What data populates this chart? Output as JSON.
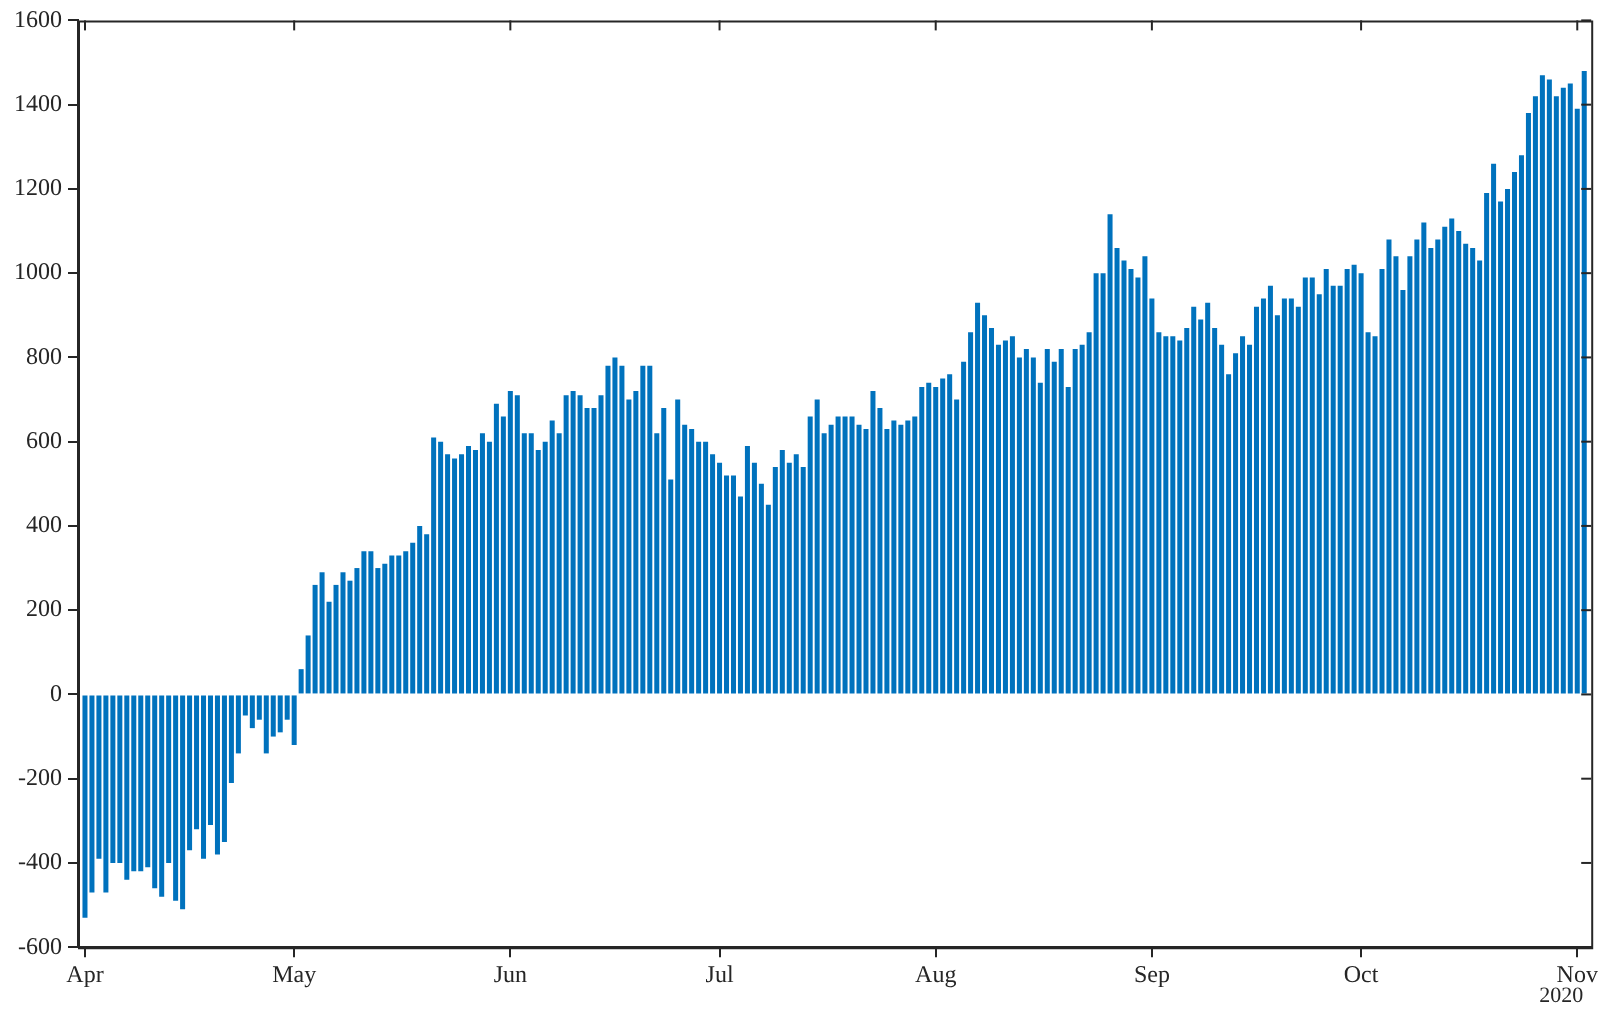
{
  "chart_data": {
    "type": "bar",
    "color": "#0072bd",
    "grid": false,
    "legend": false,
    "x": [
      "2020-04-01",
      "2020-04-02",
      "2020-04-03",
      "2020-04-04",
      "2020-04-05",
      "2020-04-06",
      "2020-04-07",
      "2020-04-08",
      "2020-04-09",
      "2020-04-10",
      "2020-04-11",
      "2020-04-12",
      "2020-04-13",
      "2020-04-14",
      "2020-04-15",
      "2020-04-16",
      "2020-04-17",
      "2020-04-18",
      "2020-04-19",
      "2020-04-20",
      "2020-04-21",
      "2020-04-22",
      "2020-04-23",
      "2020-04-24",
      "2020-04-25",
      "2020-04-26",
      "2020-04-27",
      "2020-04-28",
      "2020-04-29",
      "2020-04-30",
      "2020-05-01",
      "2020-05-02",
      "2020-05-03",
      "2020-05-04",
      "2020-05-05",
      "2020-05-06",
      "2020-05-07",
      "2020-05-08",
      "2020-05-09",
      "2020-05-10",
      "2020-05-11",
      "2020-05-12",
      "2020-05-13",
      "2020-05-14",
      "2020-05-15",
      "2020-05-16",
      "2020-05-17",
      "2020-05-18",
      "2020-05-19",
      "2020-05-20",
      "2020-05-21",
      "2020-05-22",
      "2020-05-23",
      "2020-05-24",
      "2020-05-25",
      "2020-05-26",
      "2020-05-27",
      "2020-05-28",
      "2020-05-29",
      "2020-05-30",
      "2020-05-31",
      "2020-06-01",
      "2020-06-02",
      "2020-06-03",
      "2020-06-04",
      "2020-06-05",
      "2020-06-06",
      "2020-06-07",
      "2020-06-08",
      "2020-06-09",
      "2020-06-10",
      "2020-06-11",
      "2020-06-12",
      "2020-06-13",
      "2020-06-14",
      "2020-06-15",
      "2020-06-16",
      "2020-06-17",
      "2020-06-18",
      "2020-06-19",
      "2020-06-20",
      "2020-06-21",
      "2020-06-22",
      "2020-06-23",
      "2020-06-24",
      "2020-06-25",
      "2020-06-26",
      "2020-06-27",
      "2020-06-28",
      "2020-06-29",
      "2020-06-30",
      "2020-07-01",
      "2020-07-02",
      "2020-07-03",
      "2020-07-04",
      "2020-07-05",
      "2020-07-06",
      "2020-07-07",
      "2020-07-08",
      "2020-07-09",
      "2020-07-10",
      "2020-07-11",
      "2020-07-12",
      "2020-07-13",
      "2020-07-14",
      "2020-07-15",
      "2020-07-16",
      "2020-07-17",
      "2020-07-18",
      "2020-07-19",
      "2020-07-20",
      "2020-07-21",
      "2020-07-22",
      "2020-07-23",
      "2020-07-24",
      "2020-07-25",
      "2020-07-26",
      "2020-07-27",
      "2020-07-28",
      "2020-07-29",
      "2020-07-30",
      "2020-07-31",
      "2020-08-01",
      "2020-08-02",
      "2020-08-03",
      "2020-08-04",
      "2020-08-05",
      "2020-08-06",
      "2020-08-07",
      "2020-08-08",
      "2020-08-09",
      "2020-08-10",
      "2020-08-11",
      "2020-08-12",
      "2020-08-13",
      "2020-08-14",
      "2020-08-15",
      "2020-08-16",
      "2020-08-17",
      "2020-08-18",
      "2020-08-19",
      "2020-08-20",
      "2020-08-21",
      "2020-08-22",
      "2020-08-23",
      "2020-08-24",
      "2020-08-25",
      "2020-08-26",
      "2020-08-27",
      "2020-08-28",
      "2020-08-29",
      "2020-08-30",
      "2020-08-31",
      "2020-09-01",
      "2020-09-02",
      "2020-09-03",
      "2020-09-04",
      "2020-09-05",
      "2020-09-06",
      "2020-09-07",
      "2020-09-08",
      "2020-09-09",
      "2020-09-10",
      "2020-09-11",
      "2020-09-12",
      "2020-09-13",
      "2020-09-14",
      "2020-09-15",
      "2020-09-16",
      "2020-09-17",
      "2020-09-18",
      "2020-09-19",
      "2020-09-20",
      "2020-09-21",
      "2020-09-22",
      "2020-09-23",
      "2020-09-24",
      "2020-09-25",
      "2020-09-26",
      "2020-09-27",
      "2020-09-28",
      "2020-09-29",
      "2020-09-30",
      "2020-10-01",
      "2020-10-02",
      "2020-10-03",
      "2020-10-04",
      "2020-10-05",
      "2020-10-06",
      "2020-10-07",
      "2020-10-08",
      "2020-10-09",
      "2020-10-10",
      "2020-10-11",
      "2020-10-12",
      "2020-10-13",
      "2020-10-14",
      "2020-10-15",
      "2020-10-16",
      "2020-10-17",
      "2020-10-18",
      "2020-10-19",
      "2020-10-20",
      "2020-10-21",
      "2020-10-22",
      "2020-10-23",
      "2020-10-24",
      "2020-10-25",
      "2020-10-26",
      "2020-10-27",
      "2020-10-28",
      "2020-10-29",
      "2020-10-30",
      "2020-10-31",
      "2020-11-01",
      "2020-11-02"
    ],
    "values": [
      -530,
      -470,
      -390,
      -470,
      -400,
      -400,
      -440,
      -420,
      -420,
      -410,
      -460,
      -480,
      -400,
      -490,
      -510,
      -370,
      -320,
      -390,
      -310,
      -380,
      -350,
      -210,
      -140,
      -50,
      -80,
      -60,
      -140,
      -100,
      -90,
      -60,
      -120,
      60,
      140,
      260,
      290,
      220,
      260,
      290,
      270,
      300,
      340,
      340,
      300,
      310,
      330,
      330,
      340,
      360,
      400,
      380,
      610,
      600,
      570,
      560,
      570,
      590,
      580,
      620,
      600,
      690,
      660,
      720,
      710,
      620,
      620,
      580,
      600,
      650,
      620,
      710,
      720,
      710,
      680,
      680,
      710,
      780,
      800,
      780,
      700,
      720,
      780,
      780,
      620,
      680,
      510,
      700,
      640,
      630,
      600,
      600,
      570,
      550,
      520,
      520,
      470,
      590,
      550,
      500,
      450,
      540,
      580,
      550,
      570,
      540,
      660,
      700,
      620,
      640,
      660,
      660,
      660,
      640,
      630,
      720,
      680,
      630,
      650,
      640,
      650,
      660,
      730,
      740,
      730,
      750,
      760,
      700,
      790,
      860,
      930,
      900,
      870,
      830,
      840,
      850,
      800,
      820,
      800,
      740,
      820,
      790,
      820,
      730,
      820,
      830,
      860,
      1000,
      1000,
      1140,
      1060,
      1030,
      1010,
      990,
      1040,
      940,
      860,
      850,
      850,
      840,
      870,
      920,
      890,
      930,
      870,
      830,
      760,
      810,
      850,
      830,
      920,
      940,
      970,
      900,
      940,
      940,
      920,
      990,
      990,
      950,
      1010,
      970,
      970,
      1010,
      1020,
      1000,
      860,
      850,
      1010,
      1080,
      1040,
      960,
      1040,
      1080,
      1120,
      1060,
      1080,
      1110,
      1130,
      1100,
      1070,
      1060,
      1030,
      1190,
      1260,
      1170,
      1200,
      1240,
      1280,
      1380,
      1420,
      1470,
      1460,
      1420,
      1440,
      1450,
      1390,
      1480
    ],
    "xlim": [
      "2020-03-31",
      "2020-11-03"
    ],
    "xticks": [
      {
        "value": "2020-04-01",
        "label": "Apr"
      },
      {
        "value": "2020-05-01",
        "label": "May"
      },
      {
        "value": "2020-06-01",
        "label": "Jun"
      },
      {
        "value": "2020-07-01",
        "label": "Jul"
      },
      {
        "value": "2020-08-01",
        "label": "Aug"
      },
      {
        "value": "2020-09-01",
        "label": "Sep"
      },
      {
        "value": "2020-10-01",
        "label": "Oct"
      },
      {
        "value": "2020-11-01",
        "label": "Nov"
      }
    ],
    "ylim": [
      -600,
      1600
    ],
    "yticks": [
      -600,
      -400,
      -200,
      0,
      200,
      400,
      600,
      800,
      1000,
      1200,
      1400,
      1600
    ],
    "annotations": [
      "2020"
    ]
  }
}
